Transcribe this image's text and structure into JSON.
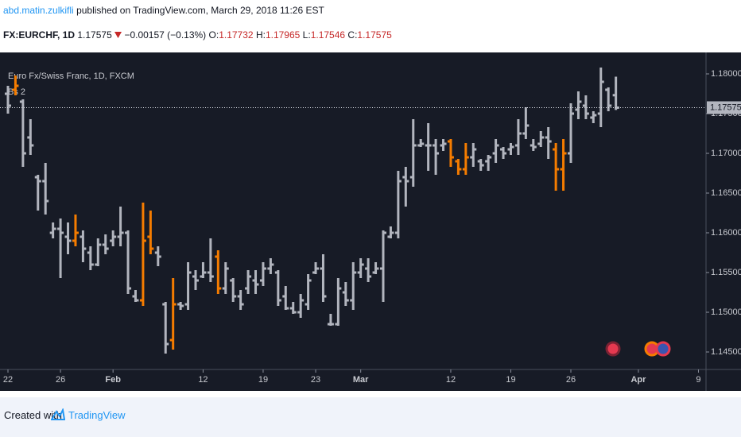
{
  "header": {
    "author": "abd.matin.zulkifli",
    "published": "published on TradingView.com, March 29, 2018 11:26 EST",
    "symbol": "FX:EURCHF, 1D",
    "change": "−0.00157 (−0.13%)",
    "o_label": "O:",
    "h_label": "H:",
    "l_label": "L:",
    "c_label": "C:"
  },
  "chart_data": {
    "type": "ohlc",
    "title": "Euro Fx/Swiss Franc, 1D, FXCM",
    "indicator": "Bs 2",
    "categories": [
      "22",
      null,
      null,
      null,
      null,
      null,
      null,
      "26",
      null,
      null,
      null,
      null,
      null,
      null,
      "Feb",
      null,
      null,
      null,
      null,
      null,
      null,
      null,
      null,
      null,
      null,
      null,
      "12",
      null,
      null,
      null,
      null,
      null,
      null,
      null,
      "19",
      null,
      null,
      null,
      null,
      null,
      null,
      "23",
      null,
      null,
      null,
      null,
      null,
      "Mar",
      null,
      null,
      null,
      null,
      null,
      null,
      null,
      null,
      null,
      null,
      null,
      "12",
      null,
      null,
      null,
      null,
      null,
      null,
      null,
      "19",
      null,
      null,
      null,
      null,
      null,
      null,
      null,
      "26",
      null,
      null,
      null,
      null,
      null,
      null,
      null,
      null,
      "Apr",
      null,
      null,
      null,
      null,
      null,
      null,
      null,
      "9"
    ],
    "open": [
      1.1775,
      1.178,
      1.1765,
      1.172,
      1.167,
      1.1665,
      1.16,
      1.1605,
      1.1595,
      1.159,
      1.1595,
      1.1575,
      1.156,
      1.1585,
      1.159,
      1.1595,
      1.16,
      1.152,
      1.1515,
      1.1595,
      1.1575,
      1.151,
      1.1465,
      1.151,
      1.151,
      1.1545,
      1.1545,
      1.155,
      1.157,
      1.153,
      1.154,
      1.152,
      1.153,
      1.154,
      1.154,
      1.1555,
      1.155,
      1.152,
      1.1505,
      1.15,
      1.151,
      1.155,
      1.1555,
      1.1485,
      1.1485,
      1.1525,
      1.1515,
      1.155,
      1.1555,
      1.155,
      1.1555,
      1.1595,
      1.16,
      1.167,
      1.167,
      1.171,
      1.171,
      1.171,
      1.171,
      1.1715,
      1.169,
      1.168,
      1.1695,
      1.169,
      1.169,
      1.17,
      1.1705,
      1.1705,
      1.171,
      1.1725,
      1.171,
      1.1712,
      1.172,
      1.1705,
      1.168,
      1.17,
      1.1755,
      1.176,
      1.1745,
      1.175,
      1.178,
      1.17732,
      null,
      null,
      null,
      null,
      null,
      null,
      null,
      null,
      null,
      null,
      null
    ],
    "high": [
      1.1785,
      1.1798,
      1.1768,
      1.1743,
      1.1673,
      1.1688,
      1.1613,
      1.1618,
      1.1613,
      1.1623,
      1.1603,
      1.1583,
      1.1593,
      1.1598,
      1.1603,
      1.1633,
      1.1603,
      1.1528,
      1.1638,
      1.1628,
      1.1583,
      1.1513,
      1.1543,
      1.1513,
      1.1563,
      1.1553,
      1.1563,
      1.1593,
      1.1578,
      1.1563,
      1.1543,
      1.1528,
      1.1553,
      1.1553,
      1.1563,
      1.1568,
      1.1553,
      1.1533,
      1.1513,
      1.1523,
      1.1548,
      1.1563,
      1.1573,
      1.1498,
      1.1543,
      1.1538,
      1.1563,
      1.1568,
      1.1568,
      1.1563,
      1.1603,
      1.1608,
      1.1678,
      1.1683,
      1.1743,
      1.1718,
      1.1738,
      1.1718,
      1.1718,
      1.1718,
      1.1693,
      1.1713,
      1.1713,
      1.1693,
      1.1698,
      1.1718,
      1.1708,
      1.1713,
      1.1743,
      1.1758,
      1.1718,
      1.1728,
      1.1733,
      1.1713,
      1.1718,
      1.1763,
      1.1778,
      1.1773,
      1.1753,
      1.1808,
      1.1783,
      1.17965,
      null,
      null,
      null,
      null,
      null,
      null,
      null,
      null,
      null,
      null,
      null
    ],
    "low": [
      1.175,
      1.1773,
      1.1683,
      1.1698,
      1.1628,
      1.1623,
      1.1593,
      1.1543,
      1.1573,
      1.1583,
      1.1563,
      1.1553,
      1.1558,
      1.1573,
      1.1583,
      1.1583,
      1.1523,
      1.1513,
      1.1508,
      1.1573,
      1.1558,
      1.1448,
      1.1453,
      1.1503,
      1.1503,
      1.1528,
      1.1543,
      1.1538,
      1.1523,
      1.1523,
      1.1513,
      1.1503,
      1.1523,
      1.1523,
      1.1533,
      1.1548,
      1.1508,
      1.1503,
      1.1498,
      1.1493,
      1.1503,
      1.1548,
      1.1513,
      1.1483,
      1.1483,
      1.1508,
      1.1503,
      1.1543,
      1.1538,
      1.1548,
      1.1513,
      1.1593,
      1.1593,
      1.1633,
      1.1658,
      1.1708,
      1.1678,
      1.1673,
      1.1703,
      1.1683,
      1.1673,
      1.1673,
      1.1683,
      1.1678,
      1.1678,
      1.1688,
      1.1693,
      1.1698,
      1.1698,
      1.1718,
      1.1703,
      1.1708,
      1.1693,
      1.1653,
      1.1653,
      1.1688,
      1.1743,
      1.1743,
      1.1738,
      1.1733,
      1.1753,
      1.17546,
      null,
      null,
      null,
      null,
      null,
      null,
      null,
      null,
      null,
      null,
      null
    ],
    "close": [
      1.176,
      1.1785,
      1.17,
      1.171,
      1.1665,
      1.164,
      1.1605,
      1.16,
      1.159,
      1.16,
      1.158,
      1.156,
      1.1585,
      1.158,
      1.1595,
      1.16,
      1.153,
      1.1515,
      1.159,
      1.158,
      1.157,
      1.146,
      1.151,
      1.1508,
      1.155,
      1.154,
      1.155,
      1.1545,
      1.153,
      1.1555,
      1.152,
      1.151,
      1.1545,
      1.1535,
      1.1555,
      1.156,
      1.1515,
      1.1505,
      1.15,
      1.1515,
      1.154,
      1.1555,
      1.152,
      1.1485,
      1.153,
      1.1515,
      1.155,
      1.156,
      1.1545,
      1.1555,
      1.16,
      1.16,
      1.1665,
      1.1665,
      1.171,
      1.1712,
      1.171,
      1.17,
      1.1712,
      1.1695,
      1.168,
      1.1695,
      1.1705,
      1.1685,
      1.1695,
      1.171,
      1.17,
      1.1708,
      1.1725,
      1.1735,
      1.1708,
      1.172,
      1.1715,
      1.168,
      1.17,
      1.175,
      1.1765,
      1.175,
      1.1748,
      1.179,
      1.176,
      1.17575,
      null,
      null,
      null,
      null,
      null,
      null,
      null,
      null,
      null,
      null,
      null
    ],
    "color": "#b2b5be",
    "highlight_color": "#f57c00",
    "highlight": [
      1,
      9,
      18,
      19,
      22,
      28,
      59,
      60,
      61,
      73,
      74
    ],
    "ylim": [
      1.1428,
      1.1827
    ],
    "yticks": [
      {
        "value": 1.145,
        "label": "1.14500"
      },
      {
        "value": 1.15,
        "label": "1.15000"
      },
      {
        "value": 1.155,
        "label": "1.15500"
      },
      {
        "value": 1.16,
        "label": "1.16000"
      },
      {
        "value": 1.165,
        "label": "1.16500"
      },
      {
        "value": 1.17,
        "label": "1.17000"
      },
      {
        "value": 1.175,
        "label": "1.17500"
      },
      {
        "value": 1.18,
        "label": "1.18000"
      }
    ],
    "grid": false
  },
  "footer": {
    "created": "Created with",
    "brand": "TradingView"
  }
}
